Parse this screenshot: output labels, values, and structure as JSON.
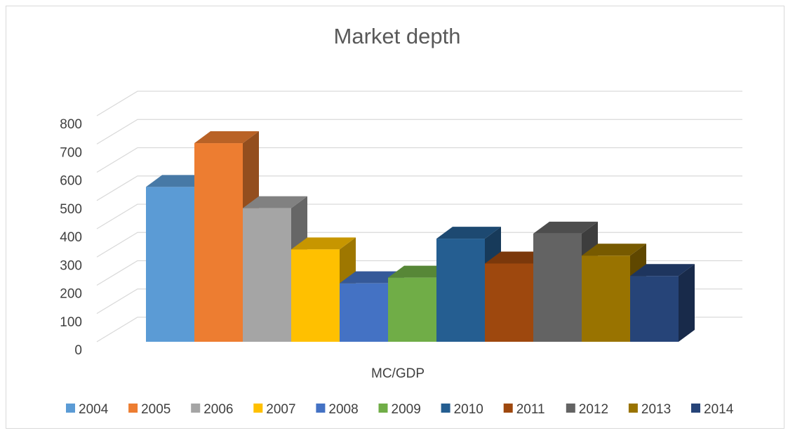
{
  "chart_data": {
    "type": "bar",
    "title": "Market depth",
    "xlabel": "",
    "ylabel": "",
    "categories": [
      "MC/GDP"
    ],
    "ylim": [
      0,
      800
    ],
    "yticks": [
      0,
      100,
      200,
      300,
      400,
      500,
      600,
      700,
      800
    ],
    "grid": true,
    "legend_position": "bottom",
    "style": "3d-column",
    "series": [
      {
        "name": "2004",
        "values": [
          548
        ],
        "color": "#5B9BD5"
      },
      {
        "name": "2005",
        "values": [
          703
        ],
        "color": "#ED7D31"
      },
      {
        "name": "2006",
        "values": [
          473
        ],
        "color": "#A5A5A5"
      },
      {
        "name": "2007",
        "values": [
          327
        ],
        "color": "#FFC000"
      },
      {
        "name": "2008",
        "values": [
          207
        ],
        "color": "#4472C4"
      },
      {
        "name": "2009",
        "values": [
          227
        ],
        "color": "#70AD47"
      },
      {
        "name": "2010",
        "values": [
          365
        ],
        "color": "#255E91"
      },
      {
        "name": "2011",
        "values": [
          277
        ],
        "color": "#9E480E"
      },
      {
        "name": "2012",
        "values": [
          383
        ],
        "color": "#636363"
      },
      {
        "name": "2013",
        "values": [
          305
        ],
        "color": "#997300"
      },
      {
        "name": "2014",
        "values": [
          233
        ],
        "color": "#264478"
      }
    ]
  }
}
